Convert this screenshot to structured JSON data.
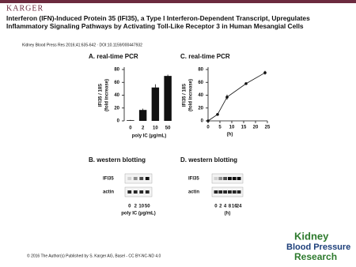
{
  "header": {
    "logo": "KARGER",
    "title": "Interferon (IFN)-Induced Protein 35 (IFI35), a Type I Interferon-Dependent Transcript, Upregulates Inflammatory Signaling Pathways by Activating Toll-Like Receptor 3 in Human Mesangial Cells",
    "citation": "Kidney Blood Press Res 2016;41:635-642 · DOI:10.1159/000447932"
  },
  "chart_data": [
    {
      "type": "bar",
      "title": "A. real-time PCR",
      "ylabel": [
        "IFI35 / 18S",
        "(fold increase)"
      ],
      "xlabel": "poly IC (µg/mL)",
      "categories": [
        "0",
        "2",
        "10",
        "50"
      ],
      "values": [
        1,
        17,
        52,
        70
      ],
      "errors": [
        0.5,
        2,
        5,
        2
      ],
      "color": "#111111",
      "ylim": [
        0,
        80
      ],
      "yticks": [
        0,
        20,
        40,
        60,
        80
      ]
    },
    {
      "type": "line",
      "title": "C. real-time PCR",
      "ylabel": [
        "IFI35 / 18S",
        "(fold increase)"
      ],
      "xlabel": "(h)",
      "x": [
        0,
        4,
        8,
        16,
        24
      ],
      "values": [
        0,
        10,
        37,
        58,
        75
      ],
      "errors": [
        0.5,
        2,
        4,
        2,
        3
      ],
      "color": "#111111",
      "xlim": [
        0,
        25
      ],
      "xticks": [
        0,
        5,
        10,
        15,
        20,
        25
      ],
      "ylim": [
        0,
        80
      ],
      "yticks": [
        0,
        20,
        40,
        60,
        80
      ]
    }
  ],
  "blots": [
    {
      "title": "B. western blotting",
      "rows": [
        "IFI35",
        "actin"
      ],
      "lanes": [
        "0",
        "2",
        "10",
        "50"
      ],
      "xlabel": "poly IC (µg/mL)"
    },
    {
      "title": "D. western blotting",
      "rows": [
        "IFI35",
        "actin"
      ],
      "lanes": [
        "0",
        "2",
        "4",
        "8",
        "16",
        "24"
      ],
      "xlabel": "(h)"
    }
  ],
  "journal": [
    "Kidney",
    "Blood Pressure",
    "Research"
  ],
  "footer": "© 2016 The Author(s) Published by S. Karger AG, Basel - CC BY-NC-ND 4.0"
}
